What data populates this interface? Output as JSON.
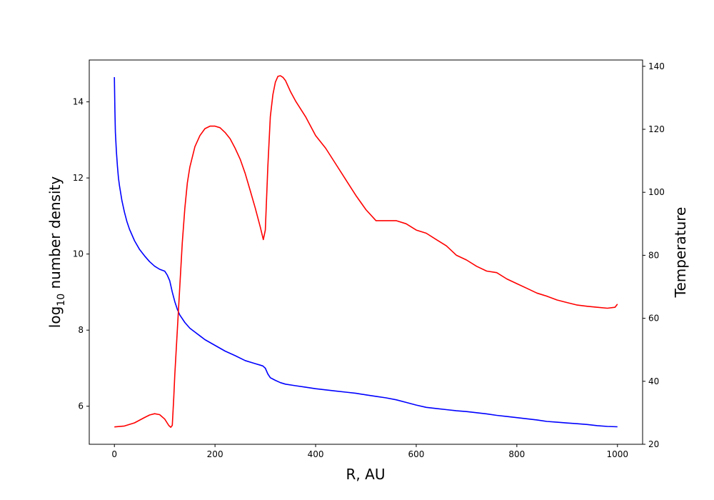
{
  "chart_data": {
    "type": "line",
    "xlabel": "R, AU",
    "ylabel_left": "log",
    "ylabel_left_sub": "10",
    "ylabel_left_rest": " number density",
    "ylabel_right": "Temperature",
    "xlim": [
      -50,
      1050
    ],
    "ylim_left": [
      5.0,
      15.1
    ],
    "ylim_right": [
      20,
      142
    ],
    "xticks": [
      0,
      200,
      400,
      600,
      800,
      1000
    ],
    "yticks_left": [
      6,
      8,
      10,
      12,
      14
    ],
    "yticks_right": [
      20,
      40,
      60,
      80,
      100,
      120,
      140
    ],
    "grid": false,
    "series": [
      {
        "axis": "left",
        "color": "#0000ff",
        "x": [
          0,
          1,
          2,
          4,
          6,
          8,
          10,
          15,
          20,
          25,
          30,
          40,
          50,
          60,
          70,
          80,
          90,
          100,
          105,
          110,
          115,
          120,
          125,
          130,
          140,
          150,
          160,
          170,
          180,
          200,
          220,
          240,
          260,
          280,
          290,
          295,
          300,
          305,
          310,
          320,
          330,
          340,
          360,
          380,
          400,
          420,
          440,
          460,
          480,
          500,
          520,
          540,
          560,
          580,
          600,
          620,
          640,
          660,
          680,
          700,
          720,
          740,
          760,
          780,
          800,
          820,
          840,
          860,
          880,
          900,
          920,
          940,
          960,
          980,
          1000
        ],
        "y": [
          14.65,
          13.8,
          13.2,
          12.7,
          12.3,
          12.0,
          11.8,
          11.4,
          11.1,
          10.85,
          10.65,
          10.35,
          10.12,
          9.95,
          9.8,
          9.68,
          9.6,
          9.55,
          9.45,
          9.3,
          9.0,
          8.75,
          8.55,
          8.4,
          8.2,
          8.05,
          7.95,
          7.85,
          7.75,
          7.6,
          7.45,
          7.33,
          7.2,
          7.12,
          7.08,
          7.06,
          7.0,
          6.85,
          6.75,
          6.68,
          6.62,
          6.58,
          6.54,
          6.5,
          6.46,
          6.43,
          6.4,
          6.37,
          6.34,
          6.3,
          6.26,
          6.22,
          6.17,
          6.1,
          6.03,
          5.97,
          5.94,
          5.91,
          5.88,
          5.86,
          5.83,
          5.8,
          5.76,
          5.73,
          5.7,
          5.67,
          5.64,
          5.6,
          5.58,
          5.56,
          5.54,
          5.52,
          5.49,
          5.47,
          5.46
        ]
      },
      {
        "axis": "right",
        "color": "#ff0000",
        "x": [
          0,
          20,
          40,
          60,
          70,
          80,
          90,
          100,
          108,
          112,
          115,
          118,
          120,
          125,
          130,
          135,
          140,
          145,
          150,
          160,
          170,
          180,
          190,
          200,
          210,
          220,
          230,
          240,
          250,
          260,
          270,
          280,
          290,
          296,
          300,
          305,
          310,
          315,
          320,
          325,
          330,
          335,
          340,
          350,
          360,
          380,
          400,
          420,
          440,
          460,
          480,
          500,
          520,
          540,
          560,
          580,
          600,
          620,
          640,
          660,
          680,
          700,
          720,
          740,
          760,
          780,
          800,
          820,
          840,
          860,
          880,
          900,
          920,
          940,
          960,
          980,
          995,
          1000
        ],
        "y": [
          25.5,
          25.8,
          26.8,
          28.5,
          29.3,
          29.7,
          29.4,
          28.0,
          26.0,
          25.4,
          26.0,
          35.0,
          42.0,
          56.0,
          70.0,
          84.0,
          95.0,
          103.0,
          108.0,
          114.5,
          118.0,
          120.2,
          121.0,
          121.0,
          120.5,
          119.0,
          117.0,
          114.0,
          110.5,
          106.0,
          100.5,
          95.0,
          89.0,
          85.0,
          88.0,
          108.0,
          124.0,
          131.0,
          135.0,
          136.8,
          137.0,
          136.5,
          135.5,
          132.0,
          129.0,
          124.0,
          118.0,
          114.0,
          109.0,
          104.0,
          99.0,
          94.5,
          91.0,
          91.0,
          91.0,
          90.0,
          88.0,
          87.0,
          85.0,
          83.0,
          80.0,
          78.5,
          76.5,
          75.0,
          74.5,
          72.5,
          71.0,
          69.5,
          68.0,
          67.0,
          65.8,
          65.0,
          64.2,
          63.8,
          63.5,
          63.2,
          63.5,
          64.5
        ]
      }
    ]
  }
}
